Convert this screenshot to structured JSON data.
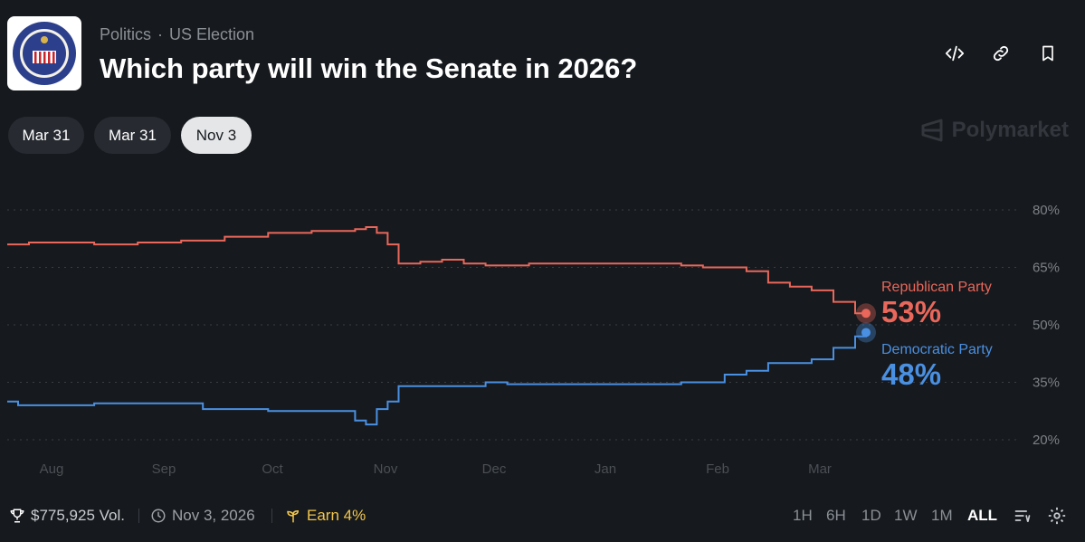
{
  "header": {
    "category": "Politics",
    "subcategory": "US Election",
    "title": "Which party will win the Senate in 2026?"
  },
  "icons": [
    "embed-icon",
    "link-icon",
    "bookmark-icon",
    "senate-seal-logo"
  ],
  "date_pills": [
    {
      "label": "Mar 31",
      "active": false
    },
    {
      "label": "Mar 31",
      "active": false
    },
    {
      "label": "Nov 3",
      "active": true
    }
  ],
  "watermark": "Polymarket",
  "chart_data": {
    "type": "line",
    "x_ticks": [
      "Aug",
      "Sep",
      "Oct",
      "Nov",
      "Dec",
      "Jan",
      "Feb",
      "Mar"
    ],
    "y_ticks": [
      "80%",
      "65%",
      "50%",
      "35%",
      "20%"
    ],
    "ylim": [
      20,
      80
    ],
    "grid": true,
    "series": [
      {
        "name": "Republican Party",
        "current": "53%",
        "color": "#e9675b",
        "points": [
          [
            0,
            71
          ],
          [
            0.5,
            71
          ],
          [
            1,
            71.5
          ],
          [
            2,
            71.5
          ],
          [
            3,
            71.5
          ],
          [
            4,
            71
          ],
          [
            5,
            71
          ],
          [
            6,
            71.5
          ],
          [
            7,
            71.5
          ],
          [
            8,
            72
          ],
          [
            9,
            72
          ],
          [
            10,
            73
          ],
          [
            11,
            73
          ],
          [
            12,
            74
          ],
          [
            13,
            74
          ],
          [
            14,
            74.5
          ],
          [
            15,
            74.5
          ],
          [
            16,
            75
          ],
          [
            16.5,
            75.5
          ],
          [
            17,
            74
          ],
          [
            17.5,
            71
          ],
          [
            18,
            66
          ],
          [
            19,
            66.5
          ],
          [
            20,
            67
          ],
          [
            21,
            66
          ],
          [
            22,
            65.5
          ],
          [
            23,
            65.5
          ],
          [
            24,
            66
          ],
          [
            25,
            66
          ],
          [
            26,
            66
          ],
          [
            27,
            66
          ],
          [
            28,
            66
          ],
          [
            29,
            66
          ],
          [
            30,
            66
          ],
          [
            31,
            65.5
          ],
          [
            32,
            65
          ],
          [
            33,
            65
          ],
          [
            34,
            64
          ],
          [
            35,
            61
          ],
          [
            36,
            60
          ],
          [
            37,
            59
          ],
          [
            38,
            56
          ],
          [
            39,
            53
          ],
          [
            39.5,
            53
          ]
        ]
      },
      {
        "name": "Democratic Party",
        "current": "48%",
        "color": "#4a90e2",
        "points": [
          [
            0,
            30
          ],
          [
            0.5,
            29
          ],
          [
            1,
            29
          ],
          [
            2,
            29
          ],
          [
            3,
            29
          ],
          [
            4,
            29.5
          ],
          [
            5,
            29.5
          ],
          [
            6,
            29.5
          ],
          [
            7,
            29.5
          ],
          [
            8,
            29.5
          ],
          [
            9,
            28
          ],
          [
            10,
            28
          ],
          [
            11,
            28
          ],
          [
            12,
            27.5
          ],
          [
            13,
            27.5
          ],
          [
            14,
            27.5
          ],
          [
            15,
            27.5
          ],
          [
            16,
            25
          ],
          [
            16.5,
            24
          ],
          [
            17,
            28
          ],
          [
            17.5,
            30
          ],
          [
            18,
            34
          ],
          [
            19,
            34
          ],
          [
            20,
            34
          ],
          [
            21,
            34
          ],
          [
            22,
            35
          ],
          [
            23,
            34.5
          ],
          [
            24,
            34.5
          ],
          [
            25,
            34.5
          ],
          [
            26,
            34.5
          ],
          [
            27,
            34.5
          ],
          [
            28,
            34.5
          ],
          [
            29,
            34.5
          ],
          [
            30,
            34.5
          ],
          [
            31,
            35
          ],
          [
            32,
            35
          ],
          [
            33,
            37
          ],
          [
            34,
            38
          ],
          [
            35,
            40
          ],
          [
            36,
            40
          ],
          [
            37,
            41
          ],
          [
            38,
            44
          ],
          [
            39,
            47
          ],
          [
            39.5,
            48
          ]
        ]
      }
    ]
  },
  "footer": {
    "volume": "$775,925 Vol.",
    "end_date": "Nov 3, 2026",
    "earn": "Earn 4%",
    "ranges": [
      {
        "label": "1H",
        "active": false
      },
      {
        "label": "6H",
        "active": false
      },
      {
        "label": "1D",
        "active": false
      },
      {
        "label": "1W",
        "active": false
      },
      {
        "label": "1M",
        "active": false
      },
      {
        "label": "ALL",
        "active": true
      }
    ]
  }
}
